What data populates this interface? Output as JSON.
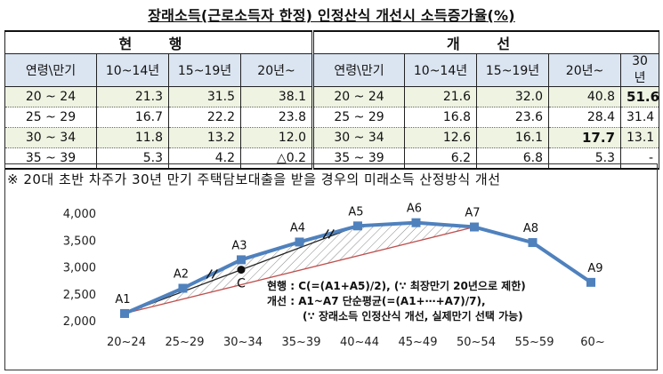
{
  "title": "장래소득(근로소득자 한정) 인정산식 개선시 소득증가율(%)",
  "table": {
    "group_current": "현 행",
    "group_improved": "개 선",
    "col_headers_current": [
      "연령\\만기",
      "10~14년",
      "15~19년",
      "20년~"
    ],
    "col_headers_improved": [
      "연령\\만기",
      "10~14년",
      "15~19년",
      "20년~",
      "30년"
    ],
    "rows": [
      {
        "age": "20 ~ 24",
        "current": [
          "21.3",
          "31.5",
          "38.1"
        ],
        "improved": [
          "21.6",
          "32.0",
          "40.8",
          "51.6"
        ]
      },
      {
        "age": "25 ~ 29",
        "current": [
          "16.7",
          "22.2",
          "23.8"
        ],
        "improved": [
          "16.8",
          "23.6",
          "28.4",
          "31.4"
        ]
      },
      {
        "age": "30 ~ 34",
        "current": [
          "11.8",
          "13.2",
          "12.0"
        ],
        "improved": [
          "12.6",
          "16.1",
          "17.7",
          "13.1"
        ]
      },
      {
        "age": "35 ~ 39",
        "current": [
          "5.3",
          "4.2",
          "△0.2"
        ],
        "improved": [
          "6.2",
          "6.8",
          "5.3",
          "-"
        ]
      }
    ]
  },
  "note": "※ 20대 초반 차주가 30년 만기 주택담보대출을 받을 경우의 미래소득 산정방식 개선",
  "annotation": {
    "line1": "현행 : C(=(A1+A5)/2),  (∵ 최장만기 20년으로 제한)",
    "line2": "개선 : A1~A7 단순평균(=(A1+⋯+A7)/7),",
    "line3": "(∵ 장래소득 인정산식 개선, 실제만기 선택 가능)"
  },
  "colors": {
    "line": "#4f81bd",
    "marker": "#4f81bd",
    "straight": "#c0504d",
    "hatch": "#888888",
    "header_bg": "#dbe5f1",
    "row_bg": "#eef3e2"
  },
  "chart_data": {
    "type": "line",
    "categories": [
      "20~24",
      "25~29",
      "30~34",
      "35~39",
      "40~44",
      "45~49",
      "50~54",
      "55~59",
      "60~"
    ],
    "series": [
      {
        "values": [
          2150,
          2620,
          3150,
          3480,
          3780,
          3840,
          3760,
          3470,
          2730
        ]
      }
    ],
    "point_labels": [
      "A1",
      "A2",
      "A3",
      "A4",
      "A5",
      "A6",
      "A7",
      "A8",
      "A9"
    ],
    "straight_lines": [
      {
        "from": "A1",
        "to": "A5"
      },
      {
        "from": "A1",
        "to": "A7"
      }
    ],
    "midpoint": {
      "label": "C",
      "x_index": 2,
      "value": 2965
    },
    "ylim": [
      2000,
      4000
    ],
    "yticks": [
      "2,000",
      "2,500",
      "3,000",
      "3,500",
      "4,000"
    ],
    "grid": false
  }
}
